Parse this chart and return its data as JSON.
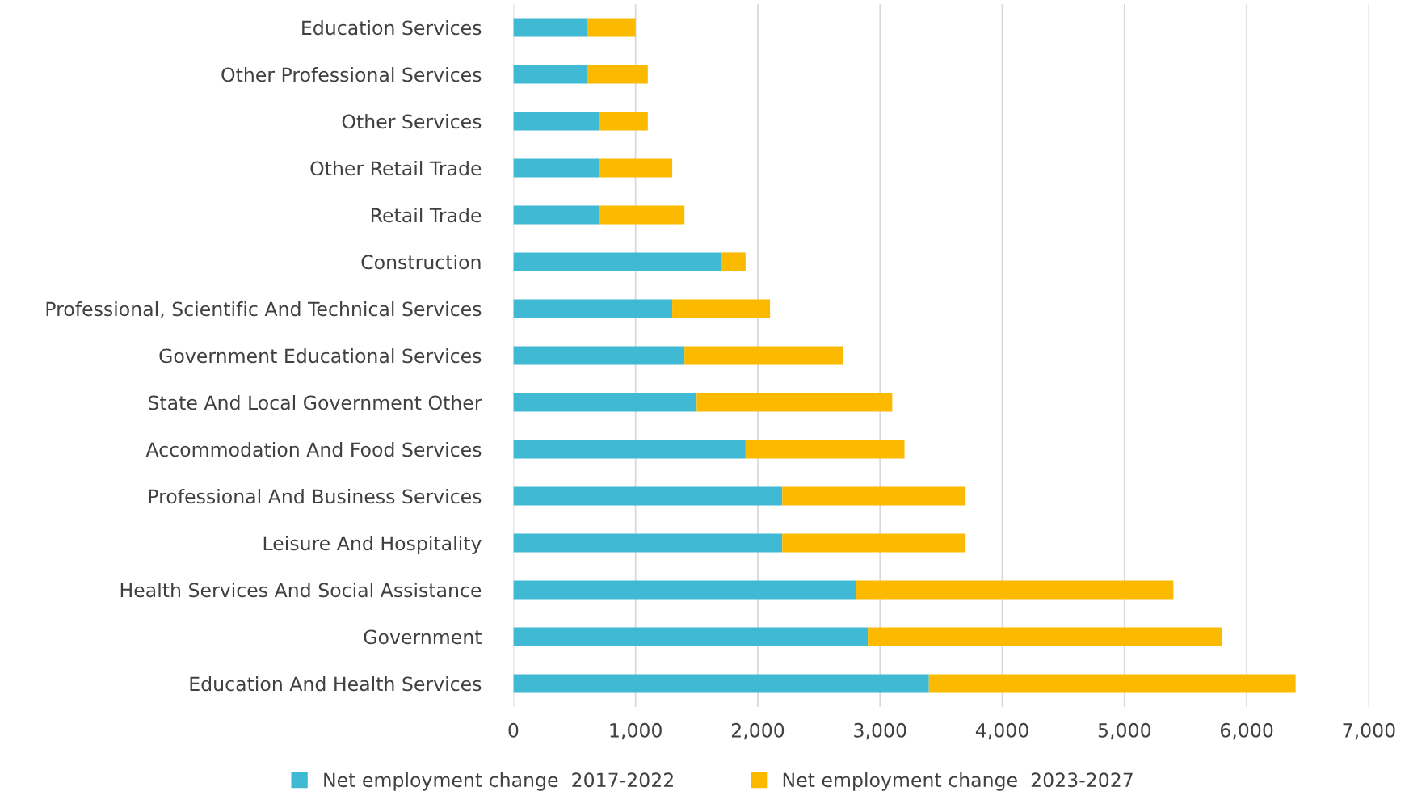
{
  "chart_data": {
    "type": "bar",
    "orientation": "horizontal",
    "stacked": true,
    "categories": [
      "Education Services",
      "Other Professional Services",
      "Other Services",
      "Other Retail Trade",
      "Retail Trade",
      "Construction",
      "Professional, Scientific And Technical Services",
      "Government Educational Services",
      "State And Local Government Other",
      "Accommodation And Food Services",
      "Professional And Business Services",
      "Leisure And Hospitality",
      "Health Services And Social Assistance",
      "Government",
      "Education And Health Services"
    ],
    "series": [
      {
        "name": "Net employment change  2017-2022",
        "color": "#3fb9d4",
        "values": [
          600,
          600,
          700,
          700,
          700,
          1700,
          1300,
          1400,
          1500,
          1900,
          2200,
          2200,
          2800,
          2900,
          3400
        ]
      },
      {
        "name": "Net employment change  2023-2027",
        "color": "#fbb900",
        "values": [
          400,
          500,
          400,
          600,
          700,
          200,
          800,
          1300,
          1600,
          1300,
          1500,
          1500,
          2600,
          2900,
          3000
        ]
      }
    ],
    "xlim": [
      0,
      7000
    ],
    "xticks": [
      {
        "value": 0,
        "label": "0"
      },
      {
        "value": 1000,
        "label": "1,000"
      },
      {
        "value": 2000,
        "label": "2,000"
      },
      {
        "value": 3000,
        "label": "3,000"
      },
      {
        "value": 4000,
        "label": "4,000"
      },
      {
        "value": 5000,
        "label": "5,000"
      },
      {
        "value": 6000,
        "label": "6,000"
      },
      {
        "value": 7000,
        "label": "7,000"
      }
    ],
    "grid": "x",
    "legend": "bottom"
  }
}
